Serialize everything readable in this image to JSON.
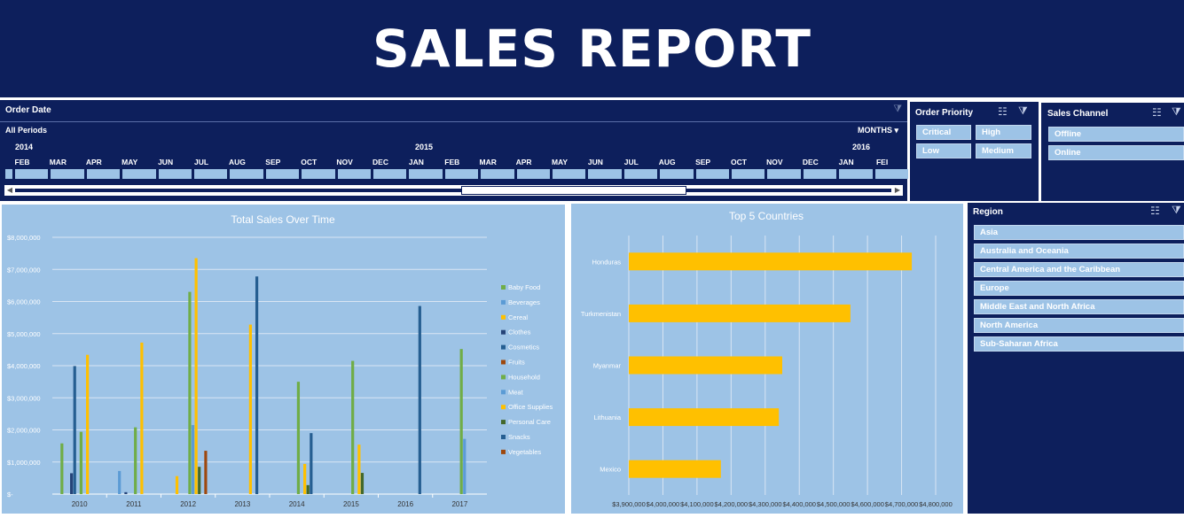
{
  "banner": {
    "title": "SALES REPORT"
  },
  "timeline": {
    "header": "Order Date",
    "period_label": "All Periods",
    "level": "MONTHS",
    "years": [
      "2014",
      "2015",
      "2016"
    ],
    "months": [
      "FEB",
      "MAR",
      "APR",
      "MAY",
      "JUN",
      "JUL",
      "AUG",
      "SEP",
      "OCT",
      "NOV",
      "DEC",
      "JAN",
      "FEB",
      "MAR",
      "APR",
      "MAY",
      "JUN",
      "JUL",
      "AUG",
      "SEP",
      "OCT",
      "NOV",
      "DEC",
      "JAN",
      "FEI"
    ]
  },
  "order_priority": {
    "title": "Order Priority",
    "items": [
      "Critical",
      "High",
      "Low",
      "Medium"
    ]
  },
  "sales_channel": {
    "title": "Sales Channel",
    "items": [
      "Offline",
      "Online"
    ]
  },
  "region": {
    "title": "Region",
    "items": [
      "Asia",
      "Australia and Oceania",
      "Central America and the Caribbean",
      "Europe",
      "Middle East and North Africa",
      "North America",
      "Sub-Saharan Africa"
    ]
  },
  "chart_data": [
    {
      "type": "bar",
      "title": "Total Sales Over Time",
      "categories": [
        "2010",
        "2011",
        "2012",
        "2013",
        "2014",
        "2015",
        "2016",
        "2017"
      ],
      "ylim": [
        0,
        8000000
      ],
      "y_ticks": [
        "$-",
        "$1,000,000",
        "$2,000,000",
        "$3,000,000",
        "$4,000,000",
        "$5,000,000",
        "$6,000,000",
        "$7,000,000",
        "$8,000,000"
      ],
      "legend_position": "right",
      "grid": true,
      "series": [
        {
          "name": "Baby Food",
          "color": "#70ad47",
          "values": [
            1580000,
            0,
            0,
            0,
            0,
            0,
            0,
            0
          ]
        },
        {
          "name": "Beverages",
          "color": "#5b9bd5",
          "values": [
            0,
            720000,
            0,
            0,
            0,
            0,
            0,
            0
          ]
        },
        {
          "name": "Cereal",
          "color": "#ffc000",
          "values": [
            0,
            0,
            560000,
            0,
            0,
            0,
            0,
            0
          ]
        },
        {
          "name": "Clothes",
          "color": "#264478",
          "values": [
            650000,
            60000,
            0,
            0,
            0,
            0,
            0,
            0
          ]
        },
        {
          "name": "Cosmetics",
          "color": "#255e91",
          "values": [
            3990000,
            0,
            0,
            0,
            0,
            0,
            0,
            0
          ]
        },
        {
          "name": "Fruits",
          "color": "#9e480e",
          "values": [
            0,
            0,
            0,
            0,
            0,
            0,
            0,
            0
          ]
        },
        {
          "name": "Household",
          "color": "#70ad47",
          "values": [
            1940000,
            2080000,
            6300000,
            0,
            3500000,
            4150000,
            0,
            4520000
          ]
        },
        {
          "name": "Meat",
          "color": "#5b9bd5",
          "values": [
            0,
            0,
            2150000,
            0,
            0,
            0,
            0,
            1720000
          ]
        },
        {
          "name": "Office Supplies",
          "color": "#ffc000",
          "values": [
            4340000,
            4720000,
            7350000,
            5280000,
            940000,
            1540000,
            0,
            0
          ]
        },
        {
          "name": "Personal Care",
          "color": "#43682b",
          "values": [
            0,
            0,
            850000,
            0,
            280000,
            660000,
            0,
            0
          ]
        },
        {
          "name": "Snacks",
          "color": "#255e91",
          "values": [
            0,
            0,
            0,
            6780000,
            1900000,
            0,
            5860000,
            0
          ]
        },
        {
          "name": "Vegetables",
          "color": "#9e480e",
          "values": [
            0,
            0,
            1350000,
            0,
            0,
            0,
            0,
            0
          ]
        }
      ]
    },
    {
      "type": "bar",
      "orientation": "horizontal",
      "title": "Top 5 Countries",
      "categories": [
        "Honduras",
        "Turkmenistan",
        "Myanmar",
        "Lithuania",
        "Mexico"
      ],
      "values": [
        4730000,
        4550000,
        4350000,
        4340000,
        4170000
      ],
      "xlim": [
        3900000,
        4800000
      ],
      "x_ticks": [
        "$3,900,000",
        "$4,000,000",
        "$4,100,000",
        "$4,200,000",
        "$4,300,000",
        "$4,400,000",
        "$4,500,000",
        "$4,600,000",
        "$4,700,000",
        "$4,800,000"
      ],
      "bar_color": "#ffc000",
      "grid": true
    }
  ]
}
